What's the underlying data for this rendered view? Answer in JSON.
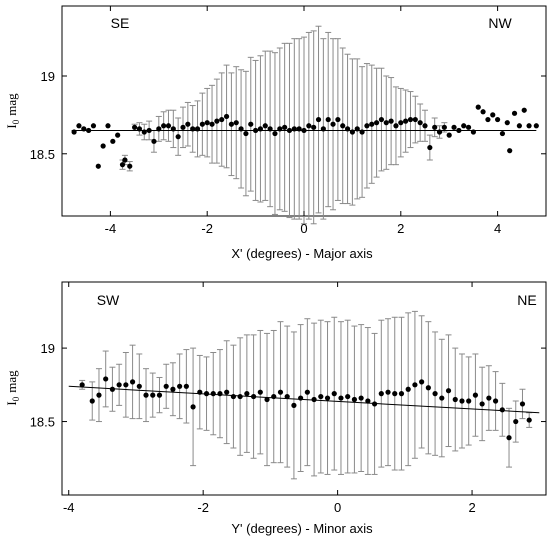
{
  "chart_data": [
    {
      "type": "scatter",
      "xlabel": "X' (degrees) - Major axis",
      "ylabel_main": "I",
      "ylabel_sub": "0",
      "ylabel_unit": "mag",
      "xlim": [
        -5.0,
        5.0
      ],
      "ylim": [
        18.1,
        19.45
      ],
      "xticks": [
        -4,
        -2,
        0,
        2,
        4
      ],
      "xtick_labels": [
        "-4",
        "-2",
        "0",
        "2",
        "4"
      ],
      "yticks": [
        18.5,
        19.0
      ],
      "ytick_labels": [
        "18.5",
        "19"
      ],
      "corner_labels": {
        "left": "SE",
        "right": "NW"
      },
      "fit_line": {
        "x": [
          -4.8,
          4.8
        ],
        "y": [
          18.65,
          18.65
        ]
      },
      "points": [
        {
          "x": -4.75,
          "y": 18.64
        },
        {
          "x": -4.65,
          "y": 18.68
        },
        {
          "x": -4.55,
          "y": 18.66
        },
        {
          "x": -4.45,
          "y": 18.65
        },
        {
          "x": -4.35,
          "y": 18.68
        },
        {
          "x": -4.25,
          "y": 18.42
        },
        {
          "x": -4.15,
          "y": 18.55
        },
        {
          "x": -4.05,
          "y": 18.68
        },
        {
          "x": -3.95,
          "y": 18.58
        },
        {
          "x": -3.85,
          "y": 18.62
        },
        {
          "x": -3.75,
          "y": 18.43,
          "err": 0.03
        },
        {
          "x": -3.7,
          "y": 18.46,
          "err": 0.03
        },
        {
          "x": -3.6,
          "y": 18.42,
          "err": 0.03
        },
        {
          "x": -3.5,
          "y": 18.67,
          "err": 0.02
        },
        {
          "x": -3.4,
          "y": 18.66,
          "err": 0.04
        },
        {
          "x": -3.3,
          "y": 18.64,
          "err": 0.05
        },
        {
          "x": -3.2,
          "y": 18.65,
          "err": 0.06
        },
        {
          "x": -3.1,
          "y": 18.58,
          "err": 0.07
        },
        {
          "x": -3.0,
          "y": 18.66,
          "err": 0.08
        },
        {
          "x": -2.9,
          "y": 18.68,
          "err": 0.09
        },
        {
          "x": -2.8,
          "y": 18.68,
          "err": 0.1
        },
        {
          "x": -2.7,
          "y": 18.66,
          "err": 0.12
        },
        {
          "x": -2.6,
          "y": 18.61,
          "err": 0.12
        },
        {
          "x": -2.5,
          "y": 18.67,
          "err": 0.13
        },
        {
          "x": -2.4,
          "y": 18.69,
          "err": 0.14
        },
        {
          "x": -2.3,
          "y": 18.66,
          "err": 0.15
        },
        {
          "x": -2.2,
          "y": 18.66,
          "err": 0.18
        },
        {
          "x": -2.1,
          "y": 18.69,
          "err": 0.2
        },
        {
          "x": -2.0,
          "y": 18.7,
          "err": 0.22
        },
        {
          "x": -1.9,
          "y": 18.69,
          "err": 0.25
        },
        {
          "x": -1.8,
          "y": 18.71,
          "err": 0.27
        },
        {
          "x": -1.7,
          "y": 18.72,
          "err": 0.3
        },
        {
          "x": -1.6,
          "y": 18.74,
          "err": 0.33
        },
        {
          "x": -1.5,
          "y": 18.69,
          "err": 0.33
        },
        {
          "x": -1.4,
          "y": 18.7,
          "err": 0.36
        },
        {
          "x": -1.3,
          "y": 18.66,
          "err": 0.38
        },
        {
          "x": -1.2,
          "y": 18.63,
          "err": 0.4
        },
        {
          "x": -1.1,
          "y": 18.69,
          "err": 0.43
        },
        {
          "x": -1.0,
          "y": 18.65,
          "err": 0.45
        },
        {
          "x": -0.9,
          "y": 18.66,
          "err": 0.47
        },
        {
          "x": -0.8,
          "y": 18.68,
          "err": 0.48
        },
        {
          "x": -0.7,
          "y": 18.66,
          "err": 0.5
        },
        {
          "x": -0.6,
          "y": 18.63,
          "err": 0.52
        },
        {
          "x": -0.5,
          "y": 18.66,
          "err": 0.52
        },
        {
          "x": -0.4,
          "y": 18.67,
          "err": 0.54
        },
        {
          "x": -0.3,
          "y": 18.65,
          "err": 0.56
        },
        {
          "x": -0.2,
          "y": 18.66,
          "err": 0.58
        },
        {
          "x": -0.1,
          "y": 18.66,
          "err": 0.58
        },
        {
          "x": 0.0,
          "y": 18.65,
          "err": 0.6
        },
        {
          "x": 0.1,
          "y": 18.68,
          "err": 0.6
        },
        {
          "x": 0.2,
          "y": 18.67,
          "err": 0.62
        },
        {
          "x": 0.3,
          "y": 18.72,
          "err": 0.6
        },
        {
          "x": 0.4,
          "y": 18.66,
          "err": 0.58
        },
        {
          "x": 0.5,
          "y": 18.72,
          "err": 0.56
        },
        {
          "x": 0.6,
          "y": 18.69,
          "err": 0.55
        },
        {
          "x": 0.7,
          "y": 18.72,
          "err": 0.52
        },
        {
          "x": 0.8,
          "y": 18.68,
          "err": 0.5
        },
        {
          "x": 0.9,
          "y": 18.66,
          "err": 0.48
        },
        {
          "x": 1.0,
          "y": 18.64,
          "err": 0.47
        },
        {
          "x": 1.1,
          "y": 18.66,
          "err": 0.45
        },
        {
          "x": 1.2,
          "y": 18.64,
          "err": 0.42
        },
        {
          "x": 1.3,
          "y": 18.68,
          "err": 0.4
        },
        {
          "x": 1.4,
          "y": 18.69,
          "err": 0.38
        },
        {
          "x": 1.5,
          "y": 18.7,
          "err": 0.35
        },
        {
          "x": 1.6,
          "y": 18.72,
          "err": 0.33
        },
        {
          "x": 1.7,
          "y": 18.7,
          "err": 0.3
        },
        {
          "x": 1.8,
          "y": 18.71,
          "err": 0.28
        },
        {
          "x": 1.9,
          "y": 18.68,
          "err": 0.25
        },
        {
          "x": 2.0,
          "y": 18.7,
          "err": 0.22
        },
        {
          "x": 2.1,
          "y": 18.71,
          "err": 0.2
        },
        {
          "x": 2.2,
          "y": 18.72,
          "err": 0.18
        },
        {
          "x": 2.3,
          "y": 18.72,
          "err": 0.15
        },
        {
          "x": 2.4,
          "y": 18.7,
          "err": 0.12
        },
        {
          "x": 2.5,
          "y": 18.68,
          "err": 0.1
        },
        {
          "x": 2.6,
          "y": 18.54,
          "err": 0.08
        },
        {
          "x": 2.7,
          "y": 18.67,
          "err": 0.06
        },
        {
          "x": 2.8,
          "y": 18.64,
          "err": 0.04
        },
        {
          "x": 2.9,
          "y": 18.67,
          "err": 0.03
        },
        {
          "x": 3.0,
          "y": 18.62
        },
        {
          "x": 3.1,
          "y": 18.67
        },
        {
          "x": 3.2,
          "y": 18.65
        },
        {
          "x": 3.3,
          "y": 18.68
        },
        {
          "x": 3.4,
          "y": 18.67
        },
        {
          "x": 3.5,
          "y": 18.64
        },
        {
          "x": 3.6,
          "y": 18.8
        },
        {
          "x": 3.7,
          "y": 18.77
        },
        {
          "x": 3.8,
          "y": 18.72
        },
        {
          "x": 3.9,
          "y": 18.75
        },
        {
          "x": 4.0,
          "y": 18.72
        },
        {
          "x": 4.1,
          "y": 18.63
        },
        {
          "x": 4.2,
          "y": 18.7
        },
        {
          "x": 4.25,
          "y": 18.52
        },
        {
          "x": 4.35,
          "y": 18.76
        },
        {
          "x": 4.45,
          "y": 18.68
        },
        {
          "x": 4.55,
          "y": 18.78
        },
        {
          "x": 4.65,
          "y": 18.68
        },
        {
          "x": 4.8,
          "y": 18.68
        }
      ]
    },
    {
      "type": "scatter",
      "xlabel": "Y' (degrees) - Minor axis",
      "ylabel_main": "I",
      "ylabel_sub": "0",
      "ylabel_unit": "mag",
      "xlim": [
        -4.1,
        3.1
      ],
      "ylim": [
        18.0,
        19.45
      ],
      "xticks": [
        -4,
        -2,
        0,
        2
      ],
      "xtick_labels": [
        "-4",
        "-2",
        "0",
        "2"
      ],
      "yticks": [
        18.5,
        19.0
      ],
      "ytick_labels": [
        "18.5",
        "19"
      ],
      "corner_labels": {
        "left": "SW",
        "right": "NE"
      },
      "fit_line": {
        "x": [
          -4.0,
          3.0
        ],
        "y": [
          18.74,
          18.56
        ]
      },
      "points": [
        {
          "x": -3.8,
          "y": 18.75,
          "err": 0.03
        },
        {
          "x": -3.65,
          "y": 18.64,
          "err": 0.13
        },
        {
          "x": -3.55,
          "y": 18.68,
          "err": 0.18
        },
        {
          "x": -3.45,
          "y": 18.79,
          "err": 0.19
        },
        {
          "x": -3.35,
          "y": 18.72,
          "err": 0.15
        },
        {
          "x": -3.25,
          "y": 18.75,
          "err": 0.14
        },
        {
          "x": -3.15,
          "y": 18.75,
          "err": 0.22
        },
        {
          "x": -3.05,
          "y": 18.77,
          "err": 0.25
        },
        {
          "x": -2.95,
          "y": 18.74,
          "err": 0.22
        },
        {
          "x": -2.85,
          "y": 18.68,
          "err": 0.18
        },
        {
          "x": -2.75,
          "y": 18.68,
          "err": 0.15
        },
        {
          "x": -2.65,
          "y": 18.68,
          "err": 0.12
        },
        {
          "x": -2.55,
          "y": 18.74,
          "err": 0.15
        },
        {
          "x": -2.45,
          "y": 18.72,
          "err": 0.18
        },
        {
          "x": -2.35,
          "y": 18.74,
          "err": 0.22
        },
        {
          "x": -2.25,
          "y": 18.74,
          "err": 0.25
        },
        {
          "x": -2.15,
          "y": 18.6,
          "err": 0.4
        },
        {
          "x": -2.05,
          "y": 18.7,
          "err": 0.25
        },
        {
          "x": -1.95,
          "y": 18.69,
          "err": 0.25
        },
        {
          "x": -1.85,
          "y": 18.69,
          "err": 0.28
        },
        {
          "x": -1.75,
          "y": 18.69,
          "err": 0.3
        },
        {
          "x": -1.65,
          "y": 18.7,
          "err": 0.35
        },
        {
          "x": -1.55,
          "y": 18.67,
          "err": 0.35
        },
        {
          "x": -1.45,
          "y": 18.67,
          "err": 0.4
        },
        {
          "x": -1.35,
          "y": 18.69,
          "err": 0.4
        },
        {
          "x": -1.25,
          "y": 18.67,
          "err": 0.42
        },
        {
          "x": -1.15,
          "y": 18.7,
          "err": 0.42
        },
        {
          "x": -1.05,
          "y": 18.65,
          "err": 0.45
        },
        {
          "x": -0.95,
          "y": 18.67,
          "err": 0.45
        },
        {
          "x": -0.85,
          "y": 18.7,
          "err": 0.48
        },
        {
          "x": -0.75,
          "y": 18.67,
          "err": 0.48
        },
        {
          "x": -0.65,
          "y": 18.61,
          "err": 0.5
        },
        {
          "x": -0.55,
          "y": 18.66,
          "err": 0.5
        },
        {
          "x": -0.45,
          "y": 18.7,
          "err": 0.5
        },
        {
          "x": -0.35,
          "y": 18.65,
          "err": 0.52
        },
        {
          "x": -0.25,
          "y": 18.67,
          "err": 0.52
        },
        {
          "x": -0.15,
          "y": 18.66,
          "err": 0.52
        },
        {
          "x": -0.05,
          "y": 18.69,
          "err": 0.52
        },
        {
          "x": 0.05,
          "y": 18.66,
          "err": 0.52
        },
        {
          "x": 0.15,
          "y": 18.67,
          "err": 0.52
        },
        {
          "x": 0.25,
          "y": 18.65,
          "err": 0.5
        },
        {
          "x": 0.35,
          "y": 18.66,
          "err": 0.5
        },
        {
          "x": 0.45,
          "y": 18.64,
          "err": 0.5
        },
        {
          "x": 0.55,
          "y": 18.62,
          "err": 0.48
        },
        {
          "x": 0.65,
          "y": 18.69,
          "err": 0.5
        },
        {
          "x": 0.75,
          "y": 18.7,
          "err": 0.5
        },
        {
          "x": 0.85,
          "y": 18.69,
          "err": 0.52
        },
        {
          "x": 0.95,
          "y": 18.69,
          "err": 0.52
        },
        {
          "x": 1.05,
          "y": 18.72,
          "err": 0.52
        },
        {
          "x": 1.15,
          "y": 18.75,
          "err": 0.5
        },
        {
          "x": 1.25,
          "y": 18.77,
          "err": 0.45
        },
        {
          "x": 1.35,
          "y": 18.73,
          "err": 0.45
        },
        {
          "x": 1.45,
          "y": 18.69,
          "err": 0.42
        },
        {
          "x": 1.55,
          "y": 18.66,
          "err": 0.4
        },
        {
          "x": 1.65,
          "y": 18.71,
          "err": 0.38
        },
        {
          "x": 1.75,
          "y": 18.65,
          "err": 0.35
        },
        {
          "x": 1.85,
          "y": 18.64,
          "err": 0.32
        },
        {
          "x": 1.95,
          "y": 18.64,
          "err": 0.3
        },
        {
          "x": 2.05,
          "y": 18.68,
          "err": 0.28
        },
        {
          "x": 2.15,
          "y": 18.62,
          "err": 0.25
        },
        {
          "x": 2.25,
          "y": 18.66,
          "err": 0.22
        },
        {
          "x": 2.35,
          "y": 18.64,
          "err": 0.2
        },
        {
          "x": 2.45,
          "y": 18.58,
          "err": 0.18
        },
        {
          "x": 2.55,
          "y": 18.39,
          "err": 0.2
        },
        {
          "x": 2.65,
          "y": 18.5,
          "err": 0.14
        },
        {
          "x": 2.75,
          "y": 18.62,
          "err": 0.1
        },
        {
          "x": 2.85,
          "y": 18.51,
          "err": 0.05
        }
      ]
    }
  ]
}
